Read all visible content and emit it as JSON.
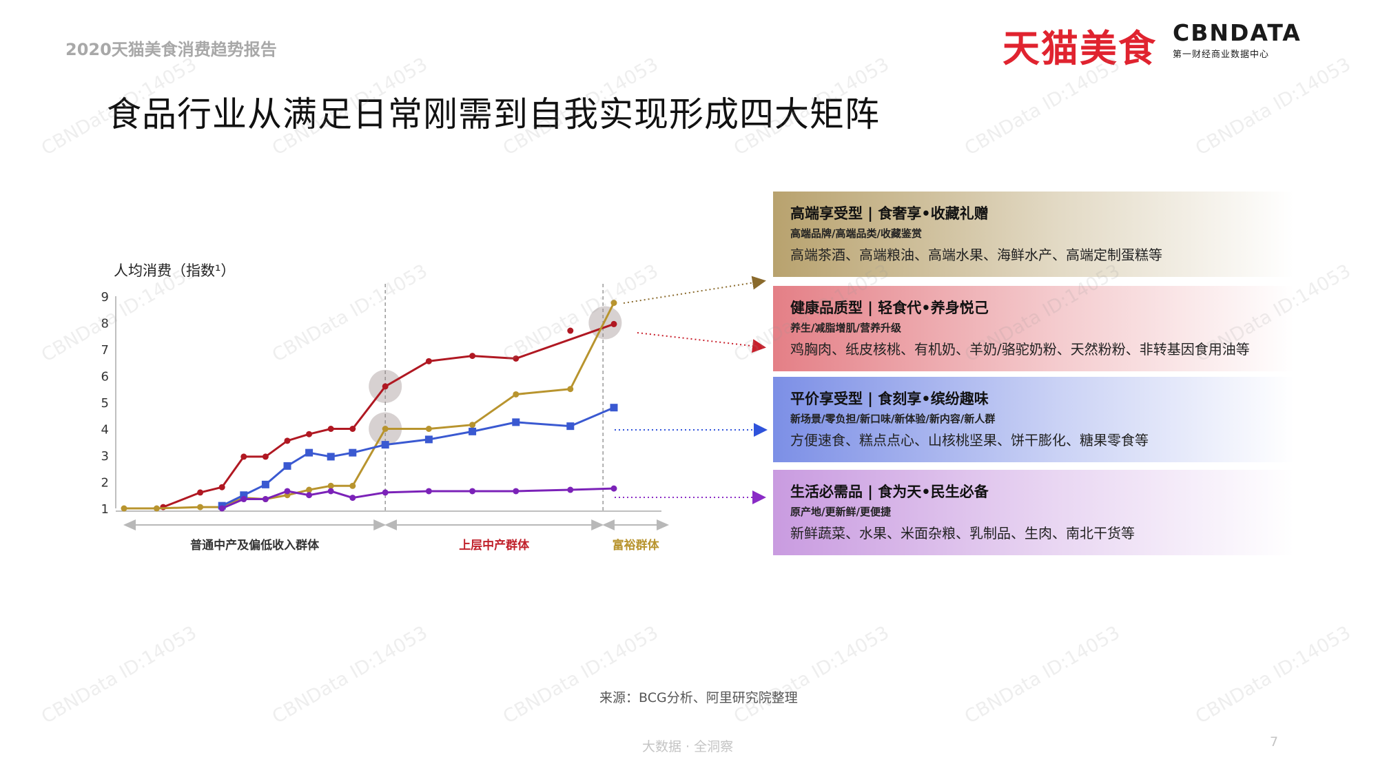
{
  "header": {
    "report_title": "2020天猫美食消费趋势报告",
    "brand_tmall": "天猫美食",
    "brand_cbn": "CBNDATA",
    "brand_cbn_sub": "第一财经商业数据中心"
  },
  "main_title": "食品行业从满足日常刚需到自我实现形成四大矩阵",
  "watermark": "CBNData ID:14053",
  "chart_data": {
    "type": "line",
    "ylabel": "人均消费（指数¹）",
    "ylim": [
      1,
      9
    ],
    "yticks": [
      1,
      2,
      3,
      4,
      5,
      6,
      7,
      8,
      9
    ],
    "x_groups": [
      {
        "label": "普通中产及偏低收入群体",
        "color": "#333333",
        "span": [
          0,
          12
        ]
      },
      {
        "label": "上层中产群体",
        "color": "#c0202a",
        "span": [
          12,
          22
        ]
      },
      {
        "label": "富裕群体",
        "color": "#b8942e",
        "span": [
          22,
          25
        ]
      }
    ],
    "series": [
      {
        "color": "#b01822",
        "marker": "circle",
        "x": [
          1.8,
          3.5,
          4.5,
          5.5,
          6.5,
          7.5,
          8.5,
          9.5,
          10.5,
          12,
          14,
          16,
          18,
          22.5
        ],
        "y": [
          1.05,
          1.6,
          1.8,
          2.95,
          2.95,
          3.55,
          3.8,
          4.0,
          4.0,
          5.6,
          6.55,
          6.75,
          6.65,
          7.95
        ],
        "extra": [
          {
            "x": 20.5,
            "y": 7.7
          }
        ]
      },
      {
        "color": "#b8942e",
        "marker": "circle",
        "x": [
          0,
          1.5,
          3.5,
          4.5,
          5.5,
          6.5,
          7.5,
          8.5,
          9.5,
          10.5,
          12,
          14,
          16,
          18,
          20.5,
          22.5
        ],
        "y": [
          1.0,
          1.0,
          1.05,
          1.05,
          1.4,
          1.35,
          1.5,
          1.7,
          1.85,
          1.85,
          4.0,
          4.0,
          4.15,
          5.3,
          5.5,
          8.75
        ]
      },
      {
        "color": "#3a59d1",
        "marker": "square",
        "x": [
          4.5,
          5.5,
          6.5,
          7.5,
          8.5,
          9.5,
          10.5,
          12,
          14,
          16,
          18,
          20.5,
          22.5
        ],
        "y": [
          1.1,
          1.5,
          1.9,
          2.6,
          3.1,
          2.95,
          3.1,
          3.4,
          3.6,
          3.9,
          4.25,
          4.1,
          4.8
        ]
      },
      {
        "color": "#7b22b8",
        "marker": "circle",
        "x": [
          4.5,
          5.5,
          6.5,
          7.5,
          8.5,
          9.5,
          10.5,
          12,
          14,
          16,
          18,
          20.5,
          22.5
        ],
        "y": [
          1.0,
          1.35,
          1.35,
          1.65,
          1.5,
          1.65,
          1.4,
          1.6,
          1.65,
          1.65,
          1.65,
          1.7,
          1.75
        ]
      }
    ],
    "highlights": [
      {
        "x": 12,
        "y": 5.6
      },
      {
        "x": 12,
        "y": 4.0
      },
      {
        "x": 22.1,
        "y": 8.0
      }
    ]
  },
  "panels": [
    {
      "title": "高端享受型 | 食奢享•收藏礼赠",
      "sub": "高端品牌/高端品类/收藏鉴赏",
      "items": "高端茶酒、高端粮油、高端水果、海鲜水产、高端定制蛋糕等",
      "color": "#b8a26e",
      "arrow_color": "#8a6a2c"
    },
    {
      "title": "健康品质型 | 轻食代•养身悦己",
      "sub": "养生/减脂增肌/营养升级",
      "items": "鸡胸肉、纸皮核桃、有机奶、羊奶/骆驼奶粉、天然粉粉、非转基因食用油等",
      "color": "#e47f86",
      "arrow_color": "#c81e2a"
    },
    {
      "title": "平价享受型 | 食刻享•缤纷趣味",
      "sub": "新场景/零负担/新口味/新体验/新内容/新人群",
      "items": "方便速食、糕点点心、山核桃坚果、饼干膨化、糖果零食等",
      "color": "#7c8fe6",
      "arrow_color": "#2f53db"
    },
    {
      "title": "生活必需品 | 食为天•民生必备",
      "sub": "原产地/更新鲜/更便捷",
      "items": "新鲜蔬菜、水果、米面杂粮、乳制品、生肉、南北干货等",
      "color": "#c99be0",
      "arrow_color": "#8a2bc6"
    }
  ],
  "source": "来源：BCG分析、阿里研究院整理",
  "footer": "大数据 · 全洞察",
  "page_number": "7"
}
